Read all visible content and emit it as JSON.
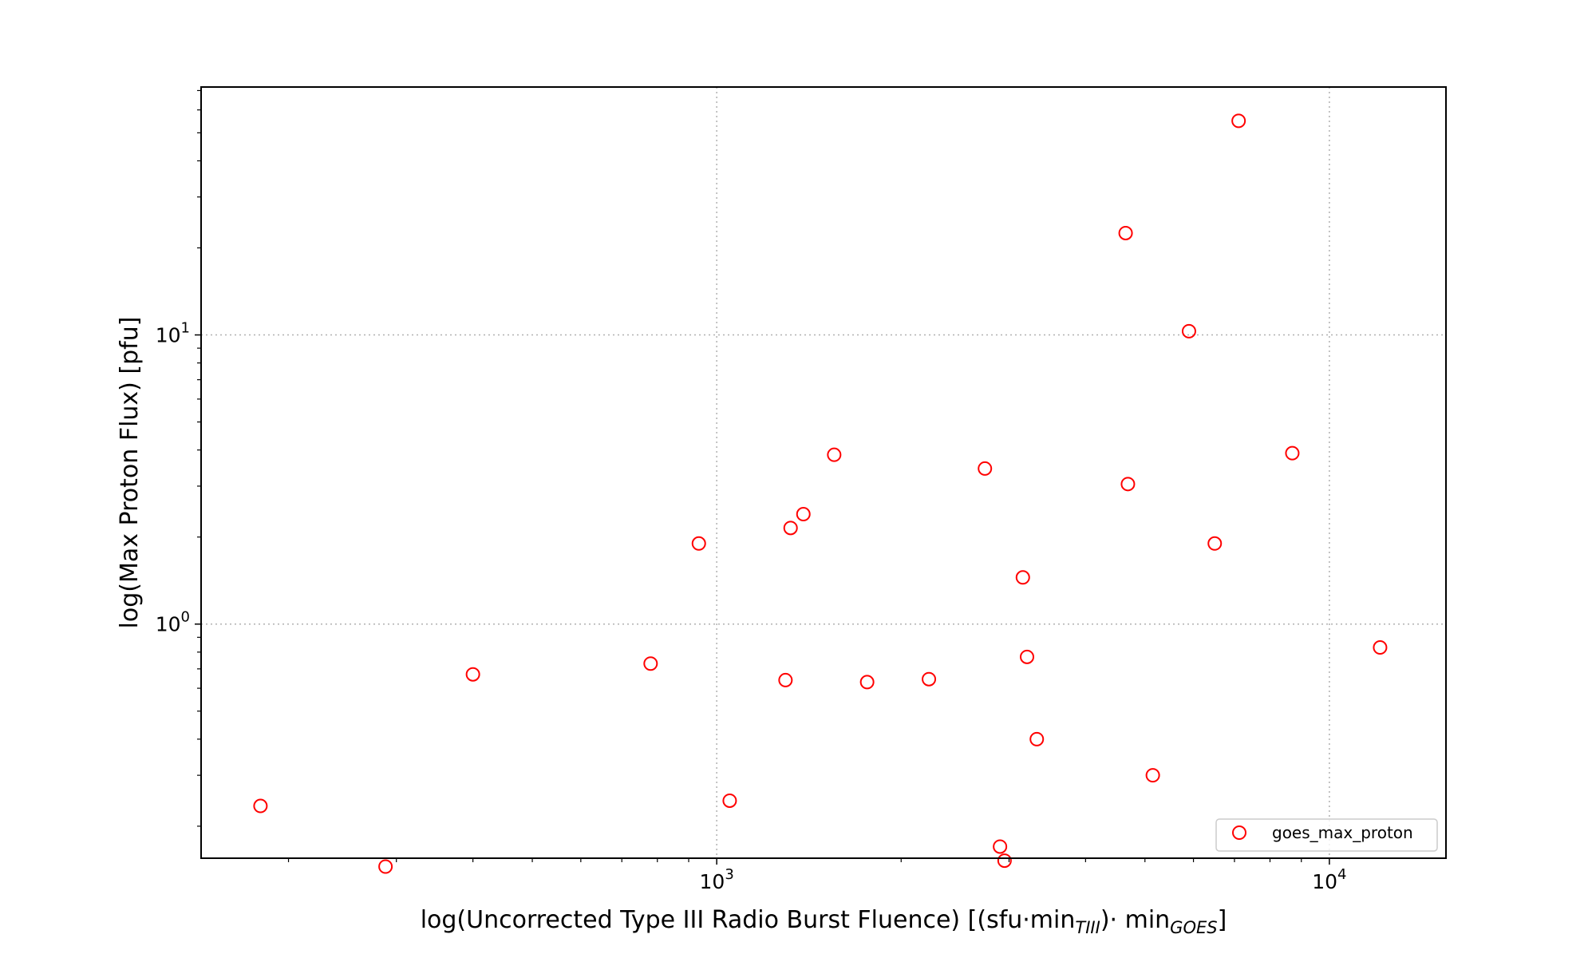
{
  "chart_data": {
    "type": "scatter",
    "title": "",
    "xlabel": "log(Uncorrected Type III Radio Burst Fluence) [(sfu·min",
    "xlabel_sub1": "TIII",
    "xlabel_mid": ")· min",
    "xlabel_sub2": "GOES",
    "xlabel_end": "]",
    "ylabel": "log(Max Proton Flux) [pfu]",
    "xscale": "log",
    "yscale": "log",
    "xlim": [
      144,
      15500
    ],
    "ylim": [
      0.155,
      72
    ],
    "x_ticks": [
      {
        "value": 1000,
        "base": "10",
        "exp": "3"
      },
      {
        "value": 10000,
        "base": "10",
        "exp": "4"
      }
    ],
    "y_ticks": [
      {
        "value": 1,
        "base": "10",
        "exp": "0"
      },
      {
        "value": 10,
        "base": "10",
        "exp": "1"
      }
    ],
    "grid": true,
    "legend_position": "lower-right",
    "marker_color": "#ff0000",
    "series": [
      {
        "name": "goes_max_proton",
        "x": [
          180,
          288,
          400,
          780,
          935,
          1050,
          1295,
          1320,
          1385,
          1555,
          1760,
          2220,
          2740,
          2900,
          2950,
          3160,
          3210,
          3330,
          4650,
          4690,
          5150,
          5900,
          6500,
          7110,
          8700,
          12100
        ],
        "y": [
          0.235,
          0.145,
          0.67,
          0.73,
          1.9,
          0.245,
          0.64,
          2.15,
          2.4,
          3.85,
          0.63,
          0.645,
          3.45,
          0.17,
          0.152,
          1.45,
          0.77,
          0.4,
          22.5,
          3.05,
          0.3,
          10.3,
          1.9,
          55,
          3.9,
          0.83
        ]
      }
    ]
  }
}
